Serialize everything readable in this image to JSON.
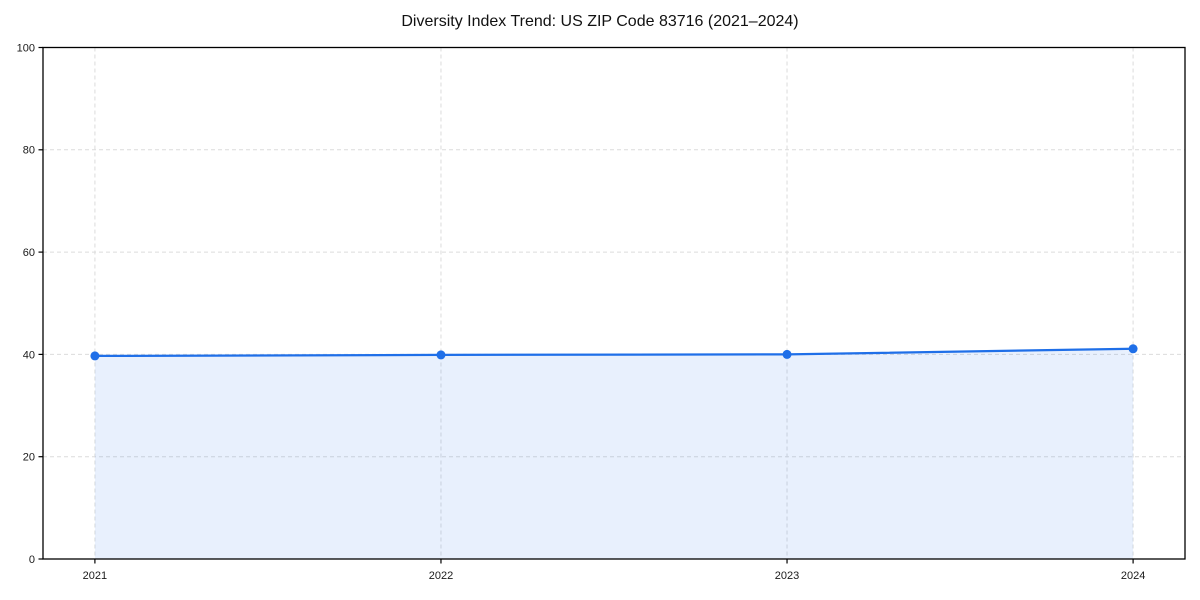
{
  "chart_data": {
    "type": "line",
    "title": "Diversity Index Trend: US ZIP Code 83716 (2021–2024)",
    "categories": [
      "2021",
      "2022",
      "2023",
      "2024"
    ],
    "series": [
      {
        "name": "Diversity Index",
        "values": [
          39.7,
          39.9,
          40.0,
          41.1
        ]
      }
    ],
    "xlabel": "",
    "ylabel": "",
    "ylim": [
      0,
      100
    ],
    "yticks": [
      0,
      20,
      40,
      60,
      80,
      100
    ],
    "grid": true,
    "grid_style": "dashed",
    "legend": false,
    "area_fill": true,
    "marker": "circle",
    "colors": {
      "line": "#1f6fe8",
      "marker": "#1f6fe8",
      "fill": "rgba(31,111,232,0.10)",
      "grid": "#dcdcdc",
      "axis": "#000000",
      "text": "#1a1a1a",
      "background": "#ffffff"
    }
  }
}
